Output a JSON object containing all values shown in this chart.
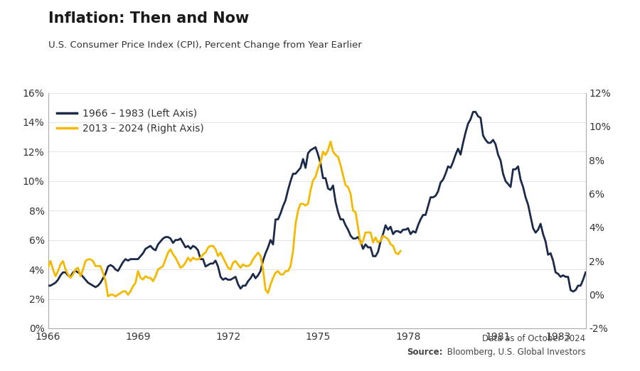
{
  "title": "Inflation: Then and Now",
  "subtitle": "U.S. Consumer Price Index (CPI), Percent Change from Year Earlier",
  "source_line1": "Data as of October 2024",
  "source_line2_bold": "Source:",
  "source_line2_rest": " Bloomberg, U.S. Global Investors",
  "legend1": "1966 – 1983 (Left Axis)",
  "legend2": "2013 – 2024 (Right Axis)",
  "color_dark": "#1b2a4a",
  "color_gold": "#f5b800",
  "background": "#ffffff",
  "left_ylim": [
    0,
    16
  ],
  "right_ylim": [
    -2,
    12
  ],
  "left_yticks": [
    0,
    2,
    4,
    6,
    8,
    10,
    12,
    14,
    16
  ],
  "right_yticks": [
    -2,
    0,
    2,
    4,
    6,
    8,
    10,
    12
  ],
  "xtick_labels": [
    "1966",
    "1969",
    "1972",
    "1975",
    "1978",
    "1981",
    "1983"
  ],
  "xtick_positions": [
    0,
    3,
    6,
    9,
    12,
    15,
    17
  ],
  "xlim": [
    0,
    17.917
  ],
  "linewidth": 2.0,
  "series1_y": [
    2.9,
    2.9,
    3.0,
    3.1,
    3.3,
    3.6,
    3.8,
    3.8,
    3.6,
    3.5,
    3.8,
    3.9,
    3.8,
    3.7,
    3.5,
    3.3,
    3.1,
    3.0,
    2.9,
    2.8,
    2.9,
    3.1,
    3.4,
    3.7,
    4.2,
    4.3,
    4.2,
    4.0,
    3.9,
    4.2,
    4.5,
    4.7,
    4.6,
    4.7,
    4.7,
    4.7,
    4.7,
    4.9,
    5.1,
    5.4,
    5.5,
    5.6,
    5.4,
    5.3,
    5.7,
    5.9,
    6.1,
    6.2,
    6.2,
    6.1,
    5.8,
    6.0,
    6.0,
    6.1,
    5.8,
    5.5,
    5.6,
    5.4,
    5.6,
    5.5,
    5.3,
    4.7,
    4.7,
    4.2,
    4.3,
    4.4,
    4.4,
    4.6,
    4.2,
    3.5,
    3.3,
    3.4,
    3.3,
    3.3,
    3.4,
    3.5,
    3.0,
    2.7,
    2.9,
    2.9,
    3.2,
    3.4,
    3.7,
    3.4,
    3.6,
    3.9,
    4.6,
    5.1,
    5.5,
    6.0,
    5.7,
    7.4,
    7.4,
    7.8,
    8.3,
    8.7,
    9.4,
    10.0,
    10.5,
    10.5,
    10.7,
    10.9,
    11.5,
    10.9,
    11.9,
    12.1,
    12.2,
    12.3,
    11.8,
    11.2,
    10.2,
    10.2,
    9.5,
    9.4,
    9.7,
    8.6,
    7.9,
    7.4,
    7.4,
    7.0,
    6.7,
    6.3,
    6.1,
    6.1,
    6.2,
    5.9,
    5.4,
    5.7,
    5.5,
    5.5,
    4.9,
    4.9,
    5.2,
    5.9,
    6.4,
    7.0,
    6.7,
    6.9,
    6.4,
    6.6,
    6.6,
    6.5,
    6.7,
    6.7,
    6.8,
    6.4,
    6.6,
    6.5,
    7.0,
    7.4,
    7.7,
    7.7,
    8.3,
    8.9,
    8.9,
    9.0,
    9.3,
    9.9,
    10.1,
    10.5,
    11.0,
    10.9,
    11.3,
    11.8,
    12.2,
    11.8,
    12.6,
    13.3,
    13.9,
    14.2,
    14.7,
    14.7,
    14.4,
    14.3,
    13.1,
    12.8,
    12.6,
    12.6,
    12.8,
    12.5,
    11.8,
    11.4,
    10.5,
    10.0,
    9.8,
    9.6,
    10.8,
    10.8,
    11.0,
    10.1,
    9.6,
    8.9,
    8.4,
    7.6,
    6.8,
    6.5,
    6.7,
    7.1,
    6.4,
    5.9,
    5.0,
    5.1,
    4.6,
    3.8,
    3.7,
    3.5,
    3.6,
    3.5,
    3.5,
    2.6,
    2.5,
    2.6,
    2.9,
    2.9,
    3.3,
    3.8
  ],
  "series2_y": [
    1.6,
    2.0,
    1.5,
    1.1,
    1.4,
    1.8,
    2.0,
    1.5,
    1.2,
    1.0,
    1.2,
    1.5,
    1.6,
    1.1,
    1.5,
    2.0,
    2.1,
    2.1,
    2.0,
    1.7,
    1.7,
    1.7,
    1.3,
    0.8,
    -0.1,
    -0.0,
    0.0,
    -0.1,
    0.0,
    0.1,
    0.2,
    0.2,
    0.0,
    0.2,
    0.5,
    0.7,
    1.4,
    1.0,
    0.9,
    1.1,
    1.0,
    1.0,
    0.8,
    1.1,
    1.5,
    1.6,
    1.7,
    2.1,
    2.5,
    2.7,
    2.4,
    2.2,
    1.9,
    1.6,
    1.7,
    1.9,
    2.2,
    2.0,
    2.2,
    2.1,
    2.1,
    2.2,
    2.4,
    2.5,
    2.8,
    2.9,
    2.9,
    2.7,
    2.3,
    2.5,
    2.2,
    1.9,
    1.6,
    1.5,
    1.9,
    2.0,
    1.8,
    1.6,
    1.8,
    1.7,
    1.7,
    1.8,
    2.1,
    2.3,
    2.5,
    2.3,
    1.5,
    0.3,
    0.1,
    0.6,
    1.0,
    1.3,
    1.4,
    1.2,
    1.2,
    1.4,
    1.4,
    1.7,
    2.6,
    4.2,
    5.0,
    5.4,
    5.4,
    5.3,
    5.4,
    6.2,
    6.8,
    7.0,
    7.5,
    7.9,
    8.5,
    8.3,
    8.6,
    9.1,
    8.5,
    8.3,
    8.2,
    7.7,
    7.1,
    6.5,
    6.4,
    6.0,
    5.0,
    4.9,
    4.0,
    3.0,
    3.2,
    3.7,
    3.7,
    3.7,
    3.1,
    3.4,
    3.1,
    3.2,
    3.5,
    3.4,
    3.3,
    3.0,
    2.9,
    2.5,
    2.4,
    2.6
  ]
}
